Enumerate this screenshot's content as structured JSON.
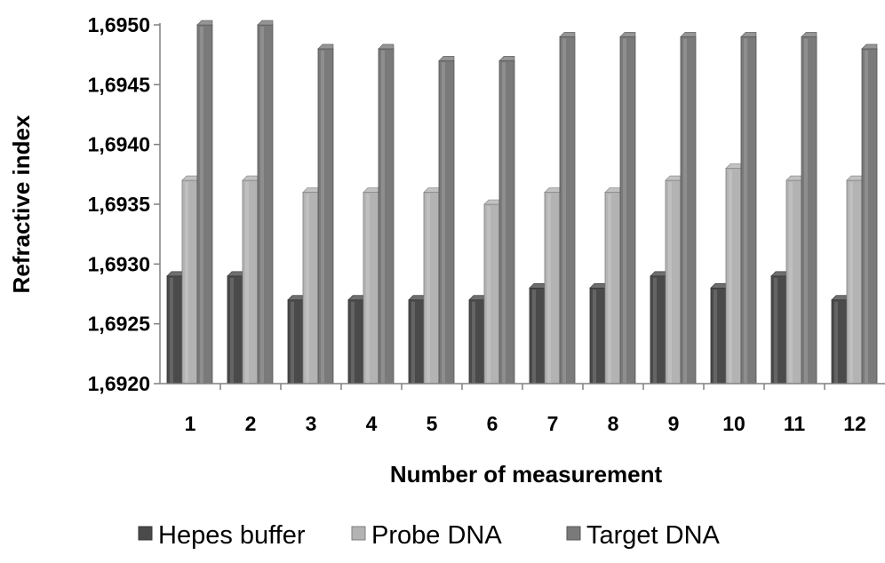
{
  "chart_data": {
    "type": "bar",
    "title": "",
    "xlabel": "Number of measurement",
    "ylabel": "Refractive index",
    "categories": [
      "1",
      "2",
      "3",
      "4",
      "5",
      "6",
      "7",
      "8",
      "9",
      "10",
      "11",
      "12"
    ],
    "ylim": [
      1.692,
      1.695
    ],
    "yticks": [
      1.692,
      1.6925,
      1.693,
      1.6935,
      1.694,
      1.6945,
      1.695
    ],
    "ytick_labels": [
      "1,6920",
      "1,6925",
      "1,6930",
      "1,6935",
      "1,6940",
      "1,6945",
      "1,6950"
    ],
    "grid": false,
    "legend_position": "bottom",
    "series": [
      {
        "name": "Hepes buffer",
        "color": "#4a4a4a",
        "values": [
          1.6929,
          1.6929,
          1.6927,
          1.6927,
          1.6927,
          1.6927,
          1.6928,
          1.6928,
          1.6929,
          1.6928,
          1.6929,
          1.6927
        ]
      },
      {
        "name": "Probe DNA",
        "color": "#b3b3b3",
        "values": [
          1.6937,
          1.6937,
          1.6936,
          1.6936,
          1.6936,
          1.6935,
          1.6936,
          1.6936,
          1.6937,
          1.6938,
          1.6937,
          1.6937
        ]
      },
      {
        "name": "Target DNA",
        "color": "#7a7a7a",
        "values": [
          1.695,
          1.695,
          1.6948,
          1.6948,
          1.6947,
          1.6947,
          1.6949,
          1.6949,
          1.6949,
          1.6949,
          1.6949,
          1.6948
        ]
      }
    ]
  }
}
